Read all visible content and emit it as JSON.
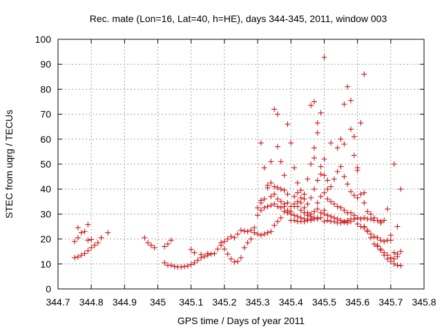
{
  "chart_data": {
    "type": "scatter",
    "title": "Rec. mate (Lon=16, Lat=40, h=HE), days 344-345, 2011, window 003",
    "xlabel": "GPS time / Days of year 2011",
    "ylabel": "STEC from uqrg / TECUs",
    "xlim": [
      344.7,
      345.8
    ],
    "ylim": [
      0,
      100
    ],
    "xticks": [
      344.7,
      344.8,
      344.9,
      345.0,
      345.1,
      345.2,
      345.3,
      345.4,
      345.5,
      345.6,
      345.7,
      345.8
    ],
    "xtick_labels": [
      "344.7",
      "344.8",
      "344.9",
      "345",
      "345.1",
      "345.2",
      "345.3",
      "345.4",
      "345.5",
      "345.6",
      "345.7",
      "345.8"
    ],
    "yticks": [
      0,
      10,
      20,
      30,
      40,
      50,
      60,
      70,
      80,
      90,
      100
    ],
    "ytick_labels": [
      "0",
      "10",
      "20",
      "30",
      "40",
      "50",
      "60",
      "70",
      "80",
      "90",
      "100"
    ],
    "grid": true,
    "marker": "+",
    "marker_color": "#cc0000",
    "series": [
      {
        "points": [
          [
            344.75,
            12.5
          ],
          [
            344.76,
            12.8
          ],
          [
            344.77,
            13.5
          ],
          [
            344.78,
            14.2
          ],
          [
            344.79,
            15.3
          ],
          [
            344.8,
            16.5
          ],
          [
            344.81,
            17.5
          ],
          [
            344.75,
            19.0
          ],
          [
            344.76,
            20.5
          ],
          [
            344.77,
            22.5
          ],
          [
            344.78,
            23.0
          ],
          [
            344.79,
            19.5
          ],
          [
            344.8,
            19.8
          ],
          [
            344.82,
            18.5
          ],
          [
            344.76,
            24.5
          ],
          [
            344.79,
            25.8
          ],
          [
            344.83,
            20.5
          ],
          [
            344.85,
            22.5
          ],
          [
            344.96,
            20.5
          ],
          [
            344.97,
            18.5
          ],
          [
            344.98,
            17.5
          ],
          [
            344.99,
            16.5
          ],
          [
            345.02,
            17.0
          ],
          [
            345.03,
            18.0
          ],
          [
            345.04,
            19.5
          ],
          [
            345.02,
            10.5
          ],
          [
            345.03,
            9.5
          ],
          [
            345.04,
            9.5
          ],
          [
            345.05,
            9.0
          ],
          [
            345.06,
            8.8
          ],
          [
            345.07,
            8.8
          ],
          [
            345.08,
            9.0
          ],
          [
            345.09,
            9.2
          ],
          [
            345.1,
            9.8
          ],
          [
            345.11,
            10.5
          ],
          [
            345.12,
            11.5
          ],
          [
            345.13,
            12.5
          ],
          [
            345.14,
            13.0
          ],
          [
            345.15,
            13.5
          ],
          [
            345.16,
            14.0
          ],
          [
            345.1,
            15.8
          ],
          [
            345.11,
            14.5
          ],
          [
            345.13,
            13.8
          ],
          [
            345.15,
            14.2
          ],
          [
            345.17,
            14.2
          ],
          [
            345.18,
            16.0
          ],
          [
            345.19,
            17.5
          ],
          [
            345.2,
            19.0
          ],
          [
            345.21,
            20.0
          ],
          [
            345.22,
            21.0
          ],
          [
            345.23,
            20.5
          ],
          [
            345.24,
            22.0
          ],
          [
            345.25,
            23.5
          ],
          [
            345.26,
            23.2
          ],
          [
            345.27,
            23.0
          ],
          [
            345.28,
            23.5
          ],
          [
            345.29,
            22.5
          ],
          [
            345.19,
            18.5
          ],
          [
            345.2,
            16.0
          ],
          [
            345.21,
            14.0
          ],
          [
            345.22,
            12.0
          ],
          [
            345.23,
            10.8
          ],
          [
            345.24,
            11.0
          ],
          [
            345.25,
            12.5
          ],
          [
            345.26,
            16.5
          ],
          [
            345.27,
            18.5
          ],
          [
            345.28,
            20.0
          ],
          [
            345.29,
            24.5
          ],
          [
            345.3,
            22.0
          ],
          [
            345.31,
            21.5
          ],
          [
            345.32,
            22.0
          ],
          [
            345.33,
            22.5
          ],
          [
            345.34,
            23.0
          ],
          [
            345.35,
            25.5
          ],
          [
            345.36,
            27.0
          ],
          [
            345.37,
            28.5
          ],
          [
            345.3,
            29.5
          ],
          [
            345.31,
            31.5
          ],
          [
            345.32,
            32.5
          ],
          [
            345.33,
            33.0
          ],
          [
            345.34,
            33.5
          ],
          [
            345.35,
            34.0
          ],
          [
            345.36,
            33.0
          ],
          [
            345.37,
            32.5
          ],
          [
            345.38,
            33.0
          ],
          [
            345.39,
            34.5
          ],
          [
            345.3,
            32.5
          ],
          [
            345.31,
            34.5
          ],
          [
            345.32,
            36.0
          ],
          [
            345.33,
            41.5
          ],
          [
            345.34,
            42.5
          ],
          [
            345.35,
            41.0
          ],
          [
            345.36,
            40.5
          ],
          [
            345.37,
            40.0
          ],
          [
            345.38,
            39.5
          ],
          [
            345.39,
            38.0
          ],
          [
            345.31,
            35.5
          ],
          [
            345.33,
            40.5
          ],
          [
            345.34,
            37.0
          ],
          [
            345.35,
            38.0
          ],
          [
            345.36,
            36.0
          ],
          [
            345.37,
            35.0
          ],
          [
            345.38,
            34.0
          ],
          [
            345.31,
            58.5
          ],
          [
            345.32,
            48.5
          ],
          [
            345.34,
            51.0
          ],
          [
            345.35,
            72.0
          ],
          [
            345.36,
            70.0
          ],
          [
            345.36,
            57.0
          ],
          [
            345.37,
            51.0
          ],
          [
            345.38,
            45.5
          ],
          [
            345.39,
            66.0
          ],
          [
            345.4,
            58.5
          ],
          [
            345.41,
            48.5
          ],
          [
            345.42,
            42.5
          ],
          [
            345.43,
            39.5
          ],
          [
            345.44,
            38.0
          ],
          [
            345.45,
            44.0
          ],
          [
            345.46,
            50.0
          ],
          [
            345.46,
            73.5
          ],
          [
            345.47,
            75.0
          ],
          [
            345.4,
            31.0
          ],
          [
            345.41,
            33.0
          ],
          [
            345.42,
            35.0
          ],
          [
            345.43,
            36.5
          ],
          [
            345.44,
            36.0
          ],
          [
            345.45,
            34.0
          ],
          [
            345.46,
            36.5
          ],
          [
            345.47,
            40.0
          ],
          [
            345.48,
            43.5
          ],
          [
            345.49,
            46.0
          ],
          [
            345.38,
            31.0
          ],
          [
            345.39,
            30.5
          ],
          [
            345.4,
            30.0
          ],
          [
            345.41,
            29.5
          ],
          [
            345.42,
            29.0
          ],
          [
            345.43,
            28.5
          ],
          [
            345.44,
            28.0
          ],
          [
            345.45,
            28.0
          ],
          [
            345.46,
            28.0
          ],
          [
            345.47,
            28.0
          ],
          [
            345.39,
            31.5
          ],
          [
            345.4,
            33.0
          ],
          [
            345.41,
            34.0
          ],
          [
            345.42,
            33.0
          ],
          [
            345.43,
            31.5
          ],
          [
            345.44,
            30.5
          ],
          [
            345.45,
            29.5
          ],
          [
            345.46,
            29.0
          ],
          [
            345.47,
            28.5
          ],
          [
            345.48,
            28.5
          ],
          [
            345.4,
            27.5
          ],
          [
            345.41,
            27.5
          ],
          [
            345.42,
            27.0
          ],
          [
            345.43,
            27.0
          ],
          [
            345.44,
            27.0
          ],
          [
            345.45,
            27.5
          ],
          [
            345.46,
            27.5
          ],
          [
            345.47,
            28.0
          ],
          [
            345.48,
            28.0
          ],
          [
            345.49,
            28.5
          ],
          [
            345.41,
            37.0
          ],
          [
            345.42,
            38.5
          ],
          [
            345.43,
            34.5
          ],
          [
            345.44,
            32.5
          ],
          [
            345.45,
            30.5
          ],
          [
            345.46,
            30.0
          ],
          [
            345.47,
            31.0
          ],
          [
            345.48,
            32.0
          ],
          [
            345.49,
            30.5
          ],
          [
            345.5,
            31.5
          ],
          [
            345.47,
            52.5
          ],
          [
            345.47,
            56.5
          ],
          [
            345.48,
            62.5
          ],
          [
            345.48,
            66.5
          ],
          [
            345.49,
            70.5
          ],
          [
            345.5,
            92.8
          ],
          [
            345.5,
            52.0
          ],
          [
            345.49,
            49.0
          ],
          [
            345.5,
            45.5
          ],
          [
            345.51,
            43.5
          ],
          [
            345.48,
            34.5
          ],
          [
            345.49,
            37.0
          ],
          [
            345.5,
            38.5
          ],
          [
            345.51,
            36.0
          ],
          [
            345.52,
            35.0
          ],
          [
            345.53,
            34.0
          ],
          [
            345.54,
            33.0
          ],
          [
            345.55,
            32.5
          ],
          [
            345.56,
            31.5
          ],
          [
            345.57,
            30.5
          ],
          [
            345.5,
            30.0
          ],
          [
            345.51,
            29.5
          ],
          [
            345.52,
            29.0
          ],
          [
            345.53,
            28.5
          ],
          [
            345.54,
            28.0
          ],
          [
            345.55,
            27.5
          ],
          [
            345.56,
            27.0
          ],
          [
            345.57,
            26.5
          ],
          [
            345.58,
            27.0
          ],
          [
            345.59,
            28.0
          ],
          [
            345.5,
            27.0
          ],
          [
            345.51,
            27.5
          ],
          [
            345.52,
            27.0
          ],
          [
            345.53,
            27.0
          ],
          [
            345.54,
            26.5
          ],
          [
            345.55,
            26.5
          ],
          [
            345.56,
            26.8
          ],
          [
            345.57,
            27.5
          ],
          [
            345.58,
            28.0
          ],
          [
            345.59,
            28.0
          ],
          [
            345.51,
            40.0
          ],
          [
            345.52,
            41.0
          ],
          [
            345.53,
            44.0
          ],
          [
            345.54,
            47.0
          ],
          [
            345.55,
            49.0
          ],
          [
            345.56,
            45.0
          ],
          [
            345.57,
            42.0
          ],
          [
            345.58,
            39.0
          ],
          [
            345.59,
            37.5
          ],
          [
            345.6,
            36.5
          ],
          [
            345.52,
            58.5
          ],
          [
            345.54,
            56.5
          ],
          [
            345.55,
            60.0
          ],
          [
            345.56,
            58.0
          ],
          [
            345.56,
            74.0
          ],
          [
            345.57,
            81.0
          ],
          [
            345.58,
            75.5
          ],
          [
            345.58,
            64.0
          ],
          [
            345.59,
            61.0
          ],
          [
            345.59,
            53.5
          ],
          [
            345.6,
            47.5
          ],
          [
            345.6,
            48.5
          ],
          [
            345.61,
            66.5
          ],
          [
            345.62,
            86.0
          ],
          [
            345.61,
            38.0
          ],
          [
            345.62,
            38.5
          ],
          [
            345.62,
            34.5
          ],
          [
            345.63,
            31.0
          ],
          [
            345.64,
            30.0
          ],
          [
            345.65,
            28.5
          ],
          [
            345.58,
            30.5
          ],
          [
            345.59,
            29.5
          ],
          [
            345.6,
            28.5
          ],
          [
            345.61,
            28.0
          ],
          [
            345.62,
            28.5
          ],
          [
            345.63,
            28.0
          ],
          [
            345.64,
            28.0
          ],
          [
            345.65,
            27.5
          ],
          [
            345.66,
            27.5
          ],
          [
            345.67,
            27.0
          ],
          [
            345.6,
            26.0
          ],
          [
            345.61,
            25.0
          ],
          [
            345.62,
            24.5
          ],
          [
            345.63,
            23.0
          ],
          [
            345.64,
            22.0
          ],
          [
            345.65,
            21.0
          ],
          [
            345.66,
            20.5
          ],
          [
            345.67,
            19.5
          ],
          [
            345.68,
            19.0
          ],
          [
            345.69,
            19.5
          ],
          [
            345.62,
            25.0
          ],
          [
            345.63,
            23.5
          ],
          [
            345.64,
            20.5
          ],
          [
            345.65,
            18.0
          ],
          [
            345.66,
            17.0
          ],
          [
            345.67,
            15.5
          ],
          [
            345.68,
            14.5
          ],
          [
            345.69,
            13.5
          ],
          [
            345.7,
            12.5
          ],
          [
            345.71,
            12.0
          ],
          [
            345.66,
            17.5
          ],
          [
            345.67,
            16.0
          ],
          [
            345.68,
            13.5
          ],
          [
            345.69,
            12.0
          ],
          [
            345.7,
            11.0
          ],
          [
            345.71,
            10.0
          ],
          [
            345.72,
            9.5
          ],
          [
            345.73,
            9.3
          ],
          [
            345.67,
            26.5
          ],
          [
            345.68,
            27.5
          ],
          [
            345.69,
            32.0
          ],
          [
            345.7,
            21.5
          ],
          [
            345.71,
            50.0
          ],
          [
            345.72,
            25.0
          ],
          [
            345.72,
            14.0
          ],
          [
            345.73,
            15.0
          ],
          [
            345.73,
            40.0
          ],
          [
            345.7,
            19.5
          ],
          [
            345.71,
            14.5
          ],
          [
            345.72,
            13.0
          ]
        ]
      }
    ]
  }
}
